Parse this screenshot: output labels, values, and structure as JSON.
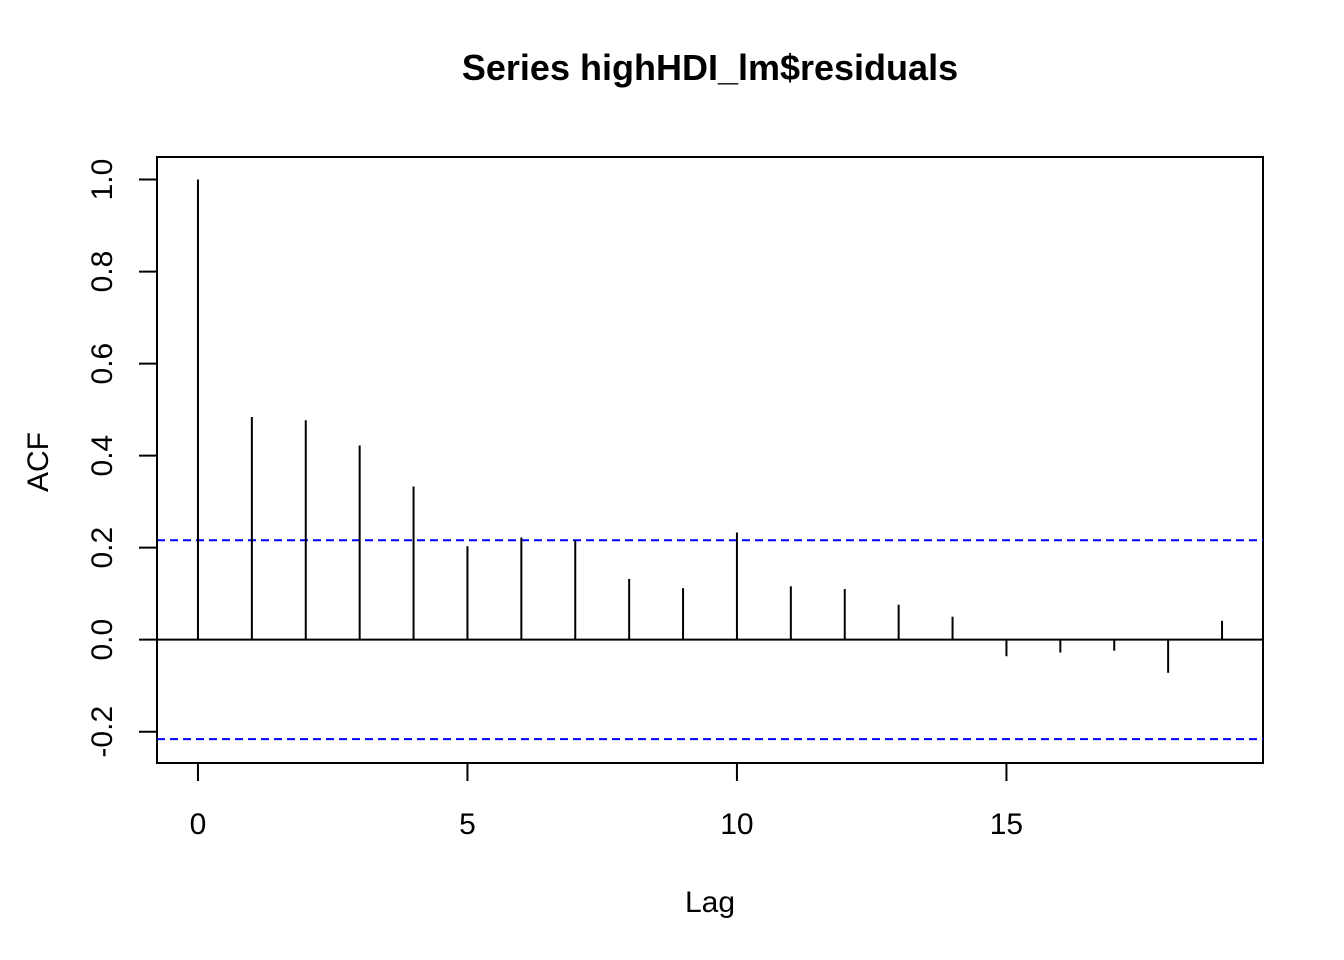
{
  "chart_data": {
    "type": "bar",
    "title": "Series  highHDI_lm$residuals",
    "xlabel": "Lag",
    "ylabel": "ACF",
    "x": [
      0,
      1,
      2,
      3,
      4,
      5,
      6,
      7,
      8,
      9,
      10,
      11,
      12,
      13,
      14,
      15,
      16,
      17,
      18,
      19
    ],
    "values": [
      1.0,
      0.484,
      0.477,
      0.422,
      0.333,
      0.203,
      0.222,
      0.216,
      0.132,
      0.112,
      0.233,
      0.116,
      0.11,
      0.076,
      0.05,
      -0.036,
      -0.028,
      -0.024,
      -0.072,
      0.041
    ],
    "confidence_bound": 0.216,
    "xlim": [
      -0.76,
      19.76
    ],
    "ylim": [
      -0.268,
      1.049
    ],
    "x_ticks": [
      0,
      5,
      10,
      15
    ],
    "y_ticks": [
      -0.2,
      0.0,
      0.2,
      0.4,
      0.6,
      0.8,
      1.0
    ],
    "x_tick_labels": [
      "0",
      "5",
      "10",
      "15"
    ],
    "y_tick_labels": [
      "-0.2",
      "0.0",
      "0.2",
      "0.4",
      "0.6",
      "0.8",
      "1.0"
    ],
    "grid": false,
    "colors": {
      "bars": "#000000",
      "confidence": "#0000ff",
      "zero_line": "#000000",
      "frame": "#000000"
    }
  }
}
